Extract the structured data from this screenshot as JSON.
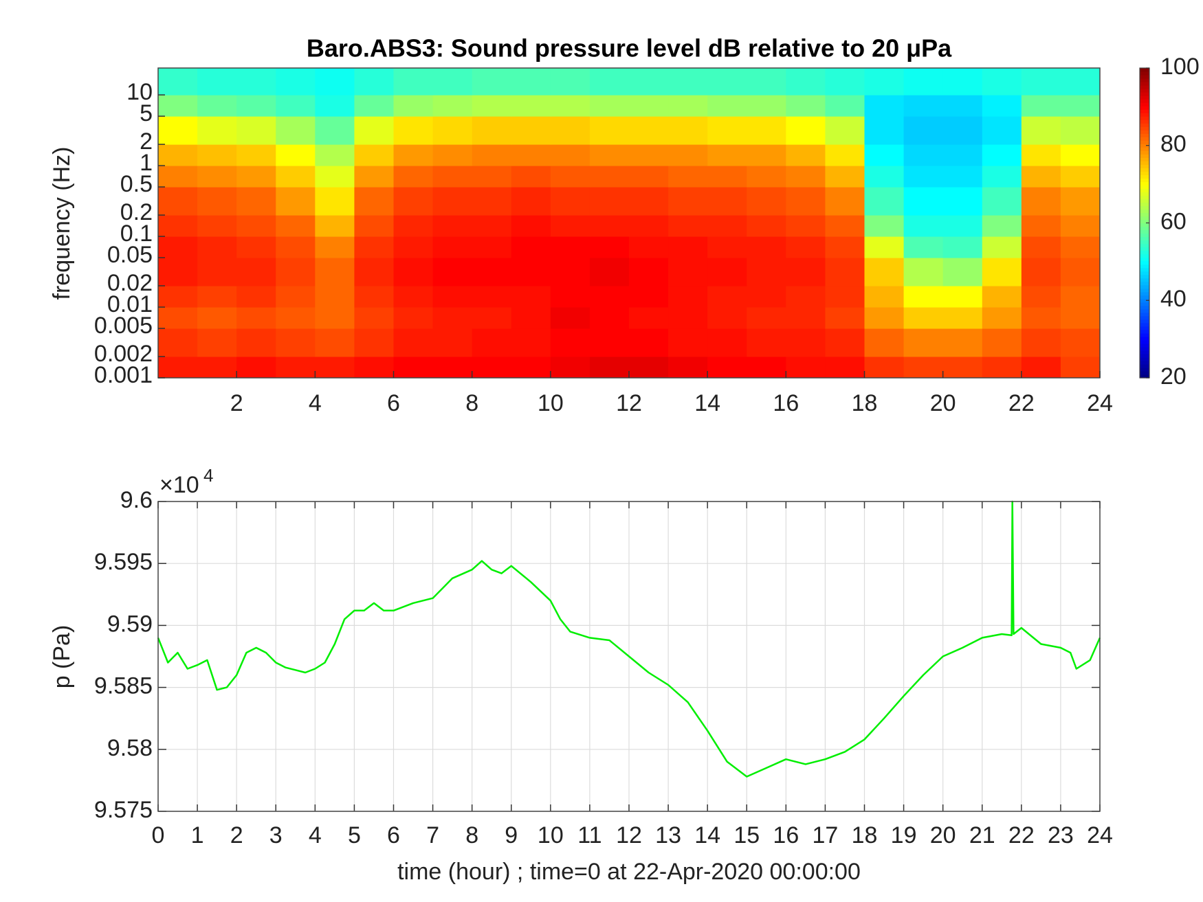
{
  "chart_data": [
    {
      "type": "heatmap",
      "title": "Baro.ABS3: Sound pressure level dB relative to 20 μPa",
      "ylabel": "frequency (Hz)",
      "xbins": [
        0,
        1,
        2,
        3,
        4,
        5,
        6,
        7,
        8,
        9,
        10,
        11,
        12,
        13,
        14,
        15,
        16,
        17,
        18,
        19,
        20,
        21,
        22,
        23,
        24
      ],
      "ybins": [
        0.001,
        0.002,
        0.005,
        0.01,
        0.02,
        0.05,
        0.1,
        0.2,
        0.5,
        1,
        2,
        5,
        10,
        24
      ],
      "z": [
        [
          88,
          88,
          89,
          88,
          88,
          89,
          90,
          90,
          90,
          90,
          91,
          92,
          92,
          91,
          90,
          90,
          89,
          89,
          86,
          85,
          85,
          86,
          88,
          85
        ],
        [
          86,
          85,
          86,
          85,
          84,
          86,
          88,
          88,
          89,
          89,
          90,
          90,
          90,
          89,
          89,
          88,
          88,
          87,
          82,
          80,
          80,
          82,
          85,
          84
        ],
        [
          84,
          83,
          84,
          83,
          82,
          85,
          87,
          88,
          88,
          89,
          91,
          90,
          89,
          89,
          88,
          87,
          87,
          85,
          78,
          74,
          74,
          78,
          83,
          82
        ],
        [
          86,
          85,
          86,
          84,
          82,
          86,
          88,
          89,
          89,
          89,
          90,
          90,
          90,
          89,
          88,
          88,
          87,
          86,
          76,
          70,
          70,
          76,
          84,
          82
        ],
        [
          88,
          87,
          87,
          85,
          82,
          87,
          89,
          90,
          90,
          90,
          90,
          91,
          90,
          89,
          89,
          88,
          88,
          86,
          74,
          64,
          62,
          72,
          85,
          83
        ],
        [
          88,
          87,
          86,
          84,
          80,
          86,
          88,
          89,
          89,
          90,
          90,
          90,
          89,
          89,
          88,
          88,
          87,
          85,
          68,
          56,
          55,
          66,
          84,
          82
        ],
        [
          86,
          85,
          84,
          82,
          76,
          84,
          87,
          88,
          88,
          89,
          88,
          88,
          88,
          87,
          87,
          86,
          85,
          83,
          60,
          52,
          52,
          60,
          82,
          80
        ],
        [
          84,
          83,
          82,
          78,
          72,
          82,
          85,
          86,
          86,
          87,
          86,
          86,
          86,
          85,
          85,
          84,
          83,
          80,
          55,
          50,
          50,
          55,
          80,
          78
        ],
        [
          80,
          79,
          78,
          74,
          68,
          78,
          82,
          83,
          83,
          84,
          83,
          83,
          83,
          82,
          82,
          81,
          80,
          76,
          52,
          48,
          48,
          52,
          76,
          74
        ],
        [
          76,
          75,
          74,
          70,
          64,
          74,
          78,
          79,
          80,
          80,
          80,
          79,
          79,
          79,
          78,
          78,
          76,
          72,
          50,
          47,
          47,
          50,
          72,
          70
        ],
        [
          70,
          68,
          67,
          63,
          58,
          68,
          72,
          73,
          74,
          74,
          74,
          73,
          73,
          73,
          72,
          72,
          70,
          66,
          48,
          46,
          46,
          48,
          66,
          65
        ],
        [
          60,
          58,
          57,
          55,
          52,
          58,
          62,
          63,
          64,
          64,
          64,
          63,
          63,
          63,
          62,
          62,
          60,
          57,
          48,
          47,
          47,
          49,
          58,
          58
        ],
        [
          54,
          53,
          53,
          52,
          51,
          53,
          55,
          55,
          56,
          56,
          56,
          55,
          55,
          55,
          55,
          55,
          54,
          53,
          52,
          51,
          51,
          52,
          53,
          53
        ]
      ],
      "colormap": "jet",
      "clim": [
        20,
        100
      ],
      "cticks": [
        20,
        40,
        60,
        80,
        100
      ],
      "xlim": [
        0,
        24
      ],
      "xticks": [
        2,
        4,
        6,
        8,
        10,
        12,
        14,
        16,
        18,
        20,
        22,
        24
      ],
      "ylim": [
        0.001,
        24
      ],
      "yscale": "log",
      "yticks": [
        0.001,
        0.002,
        0.005,
        0.01,
        0.02,
        0.05,
        0.1,
        0.2,
        0.5,
        1,
        2,
        5,
        10
      ]
    },
    {
      "type": "line",
      "xlabel": "time (hour) ; time=0 at 22-Apr-2020 00:00:00",
      "ylabel": "p (Pa)",
      "yexponent": {
        "base": "×10",
        "power": "4"
      },
      "color": "#00ee00",
      "x": [
        0,
        0.25,
        0.5,
        0.75,
        1,
        1.25,
        1.5,
        1.75,
        2,
        2.25,
        2.5,
        2.75,
        3,
        3.25,
        3.5,
        3.75,
        4,
        4.25,
        4.5,
        4.75,
        5,
        5.25,
        5.5,
        5.75,
        6,
        6.5,
        7,
        7.25,
        7.5,
        8,
        8.25,
        8.5,
        8.75,
        9,
        9.5,
        10,
        10.25,
        10.5,
        11,
        11.5,
        12,
        12.5,
        13,
        13.5,
        14,
        14.5,
        15,
        15.5,
        16,
        16.5,
        17,
        17.5,
        18,
        18.5,
        19,
        19.5,
        20,
        20.5,
        21,
        21.5,
        21.75,
        21.77,
        21.8,
        22,
        22.5,
        23,
        23.25,
        23.4,
        23.75,
        24
      ],
      "values": [
        95890,
        95870,
        95878,
        95865,
        95868,
        95872,
        95848,
        95850,
        95860,
        95878,
        95882,
        95878,
        95870,
        95866,
        95864,
        95862,
        95865,
        95870,
        95885,
        95905,
        95912,
        95912,
        95918,
        95912,
        95912,
        95918,
        95922,
        95930,
        95938,
        95945,
        95952,
        95945,
        95942,
        95948,
        95935,
        95920,
        95905,
        95895,
        95890,
        95888,
        95875,
        95862,
        95852,
        95838,
        95815,
        95790,
        95778,
        95785,
        95792,
        95788,
        95792,
        95798,
        95808,
        95825,
        95843,
        95860,
        95875,
        95882,
        95890,
        95893,
        95892,
        96000,
        95893,
        95898,
        95885,
        95882,
        95878,
        95865,
        95872,
        95890
      ],
      "xlim": [
        0,
        24
      ],
      "xticks": [
        0,
        1,
        2,
        3,
        4,
        5,
        6,
        7,
        8,
        9,
        10,
        11,
        12,
        13,
        14,
        15,
        16,
        17,
        18,
        19,
        20,
        21,
        22,
        23,
        24
      ],
      "ylim": [
        95750,
        96000
      ],
      "yticks": [
        {
          "value": 95750,
          "label": "9.575"
        },
        {
          "value": 95800,
          "label": "9.58"
        },
        {
          "value": 95850,
          "label": "9.585"
        },
        {
          "value": 95900,
          "label": "9.59"
        },
        {
          "value": 95950,
          "label": "9.595"
        },
        {
          "value": 96000,
          "label": "9.6"
        }
      ],
      "grid": true
    }
  ]
}
